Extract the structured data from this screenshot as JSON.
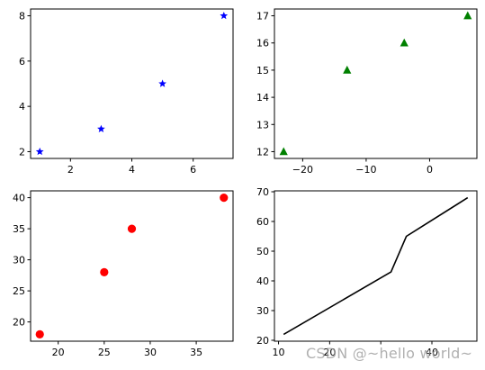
{
  "chart_data": [
    {
      "type": "scatter",
      "marker": "star",
      "color": "#0000ff",
      "x": [
        1,
        3,
        5,
        7
      ],
      "y": [
        2,
        3,
        5,
        8
      ],
      "xlim": [
        0.7,
        7.3
      ],
      "ylim": [
        1.7,
        8.3
      ],
      "xticks": [
        2,
        4,
        6
      ],
      "yticks": [
        2,
        4,
        6,
        8
      ],
      "xtick_labels": [
        "2",
        "4",
        "6"
      ],
      "ytick_labels": [
        "2",
        "4",
        "6",
        "8"
      ]
    },
    {
      "type": "scatter",
      "marker": "triangle",
      "color": "#008000",
      "x": [
        -23,
        -13,
        -4,
        6
      ],
      "y": [
        12,
        15,
        16,
        17
      ],
      "xlim": [
        -24.45,
        7.45
      ],
      "ylim": [
        11.75,
        17.25
      ],
      "xticks": [
        -20,
        -10,
        0
      ],
      "yticks": [
        12,
        13,
        14,
        15,
        16,
        17
      ],
      "xtick_labels": [
        "−20",
        "−10",
        "0"
      ],
      "ytick_labels": [
        "12",
        "13",
        "14",
        "15",
        "16",
        "17"
      ]
    },
    {
      "type": "scatter",
      "marker": "circle",
      "color": "#ff0000",
      "x": [
        18,
        25,
        28,
        38
      ],
      "y": [
        18,
        28,
        35,
        40
      ],
      "xlim": [
        17.0,
        39.0
      ],
      "ylim": [
        16.9,
        41.1
      ],
      "xticks": [
        20,
        25,
        30,
        35
      ],
      "yticks": [
        20,
        25,
        30,
        35,
        40
      ],
      "xtick_labels": [
        "20",
        "25",
        "30",
        "35"
      ],
      "ytick_labels": [
        "20",
        "25",
        "30",
        "35",
        "40"
      ]
    },
    {
      "type": "line",
      "color": "#000000",
      "x": [
        11,
        32,
        35,
        47
      ],
      "y": [
        22,
        43,
        55,
        68
      ],
      "xlim": [
        9.2,
        48.8
      ],
      "ylim": [
        19.7,
        70.3
      ],
      "xticks": [
        10,
        20,
        30,
        40
      ],
      "yticks": [
        20,
        30,
        40,
        50,
        60,
        70
      ],
      "xtick_labels": [
        "10",
        "20",
        "",
        "40"
      ],
      "ytick_labels": [
        "20",
        "30",
        "40",
        "50",
        "60",
        "70"
      ]
    }
  ],
  "watermark": "CSDN @~hello world~"
}
